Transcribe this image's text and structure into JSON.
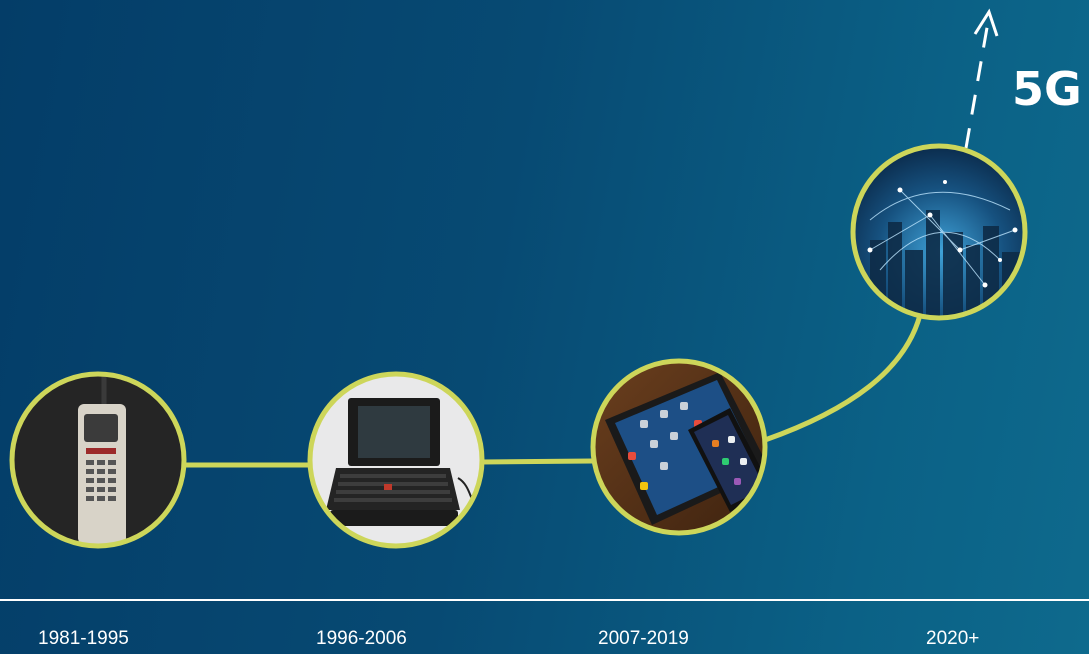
{
  "colors": {
    "background_start": "#043d68",
    "background_end": "#0e6a8d",
    "connector": "#cdd65a",
    "baseline": "#ffffff",
    "future_arrow": "#ffffff"
  },
  "eras": [
    {
      "label": "1981-1995",
      "icon": "brick-mobile-phone"
    },
    {
      "label": "1996-2006",
      "icon": "laptop-computer"
    },
    {
      "label": "2007-2019",
      "icon": "tablet-and-smartphone"
    },
    {
      "label": "2020+",
      "icon": "connected-city-network"
    }
  ],
  "future": {
    "label": "5G"
  }
}
